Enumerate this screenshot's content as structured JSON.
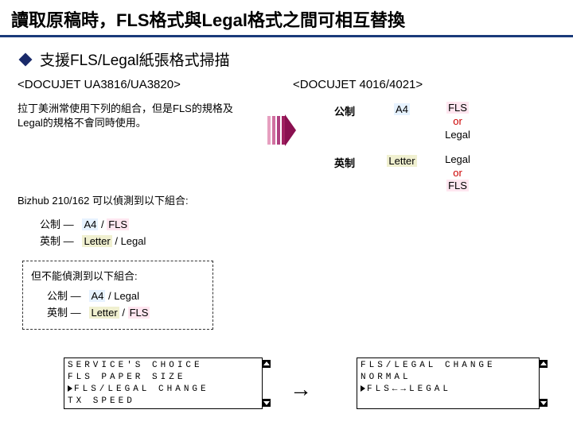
{
  "title": "讀取原稿時，FLS格式與Legal格式之間可相互替換",
  "bullet": "支援FLS/Legal紙張格式掃描",
  "model_left": "<DOCUJET UA3816/UA3820>",
  "model_right": "<DOCUJET 4016/4021>",
  "para": "拉丁美洲常使用下列的組合，但是FLS的規格及Legal的規格不會同時使用。",
  "bizhub": "Bizhub 210/162 可以偵測到以下組合:",
  "combo1_label": "公制 —",
  "combo2_label": "英制 —",
  "combo1_a": "A4",
  "combo1_b": "FLS",
  "combo2_a": "Letter",
  "combo2_b": "Legal",
  "boxed_title": "但不能偵測到以下組合:",
  "boxed1_label": "公制 —",
  "boxed1_a": "A4",
  "boxed1_b": "Legal",
  "boxed2_label": "英制 —",
  "boxed2_a": "Letter",
  "boxed2_b": "FLS",
  "arrow_colors": [
    "#e6a0c0",
    "#d070a0",
    "#b04080",
    "#a02060"
  ],
  "arrow_tri_color": "#8a1050",
  "rt": {
    "r1_label": "公制",
    "r1_c1": "A4",
    "r1_c2a": "FLS",
    "r1_or": "or",
    "r1_c2b": "Legal",
    "r2_label": "英制",
    "r2_c1": "Letter",
    "r2_c2a": "Legal",
    "r2_or": "or",
    "r2_c2b": "FLS"
  },
  "lcd_left": {
    "l1": "SERVICE'S CHOICE",
    "l2": " FLS PAPER SIZE",
    "l3": "FLS/LEGAL CHANGE",
    "l4": " TX SPEED"
  },
  "lcd_right": {
    "l1": "FLS/LEGAL CHANGE",
    "l2": " NORMAL",
    "l3": "FLS←→LEGAL"
  },
  "big_arrow": "→"
}
